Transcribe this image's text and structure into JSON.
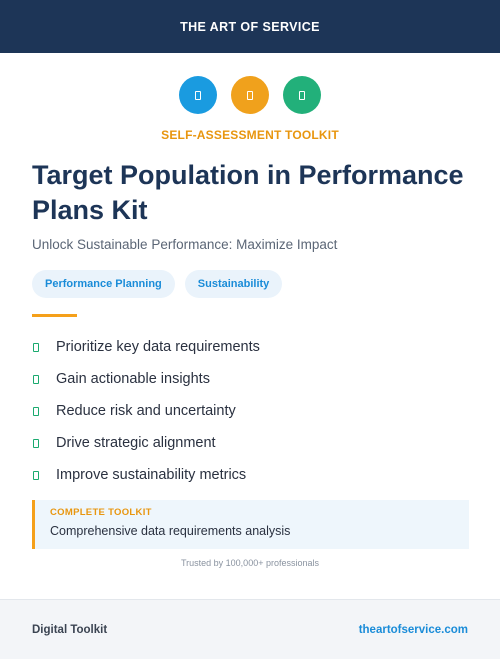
{
  "header": {
    "brand": "THE ART OF SERVICE"
  },
  "icons": [
    {
      "name": "blue-badge-icon",
      "color": "#1a9be0"
    },
    {
      "name": "orange-badge-icon",
      "color": "#f0a11c"
    },
    {
      "name": "green-badge-icon",
      "color": "#22b07a"
    }
  ],
  "hero": {
    "kicker": "SELF-ASSESSMENT TOOLKIT",
    "title": "Target Population in Performance Plans Kit",
    "subtitle": "Unlock Sustainable Performance: Maximize Impact",
    "tags": [
      "Performance Planning",
      "Sustainability"
    ]
  },
  "benefits": [
    "Prioritize key data requirements",
    "Gain actionable insights",
    "Reduce risk and uncertainty",
    "Drive strategic alignment",
    "Improve sustainability metrics"
  ],
  "callout": {
    "label": "COMPLETE TOOLKIT",
    "text": "Comprehensive data requirements analysis"
  },
  "trusted": "Trusted by 100,000+ professionals",
  "footer": {
    "left": "Digital Toolkit",
    "right": "theartofservice.com"
  }
}
